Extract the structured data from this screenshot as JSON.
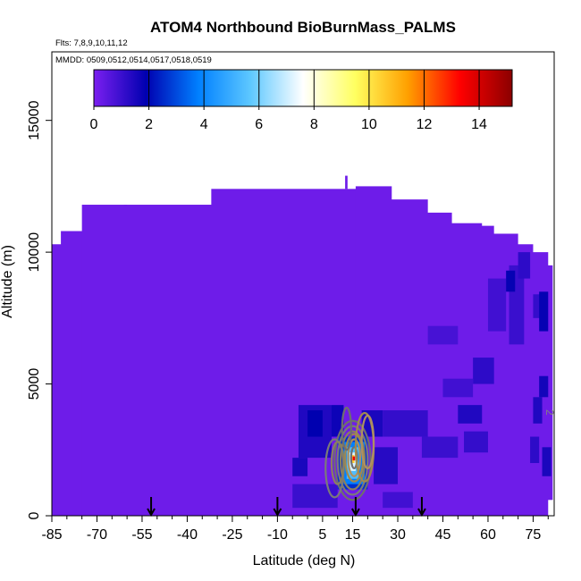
{
  "chart_data": {
    "type": "heatmap",
    "title": "ATOM4 Northbound BioBurnMass_PALMS",
    "subtitle_flights": "Flts: 7,8,9,10,11,12",
    "subtitle_dates": "MMDD: 0509,0512,0514,0517,0518,0519",
    "xlabel": "Latitude (deg N)",
    "ylabel": "Altitude (m)",
    "xlim": [
      -85,
      82
    ],
    "ylim": [
      0,
      17600
    ],
    "x_ticks": [
      -85,
      -70,
      -55,
      -40,
      -25,
      -10,
      5,
      15,
      30,
      45,
      60,
      75
    ],
    "y_ticks": [
      0,
      5000,
      10000,
      15000
    ],
    "y_tick_labels": [
      "0",
      "5000",
      "10000",
      "15000"
    ],
    "colorbar": {
      "min": 0,
      "max": 15.2,
      "ticks": [
        0,
        2,
        4,
        6,
        8,
        10,
        12,
        14
      ],
      "colors": [
        "#7b1ff0",
        "#0000b0",
        "#0080ff",
        "#5ec8ff",
        "#ffffff",
        "#ffff60",
        "#ffa000",
        "#ff0000",
        "#8b0000"
      ]
    },
    "background_value": 0.2,
    "coverage": [
      [
        -85,
        -80,
        0,
        10300
      ],
      [
        -82,
        -73,
        0,
        10800
      ],
      [
        -75,
        -60,
        0,
        11800
      ],
      [
        -61,
        -30,
        0,
        11800
      ],
      [
        -32,
        22,
        0,
        12400
      ],
      [
        16,
        28,
        0,
        12500
      ],
      [
        27,
        40,
        0,
        12000
      ],
      [
        38,
        48,
        0,
        11500
      ],
      [
        47,
        58,
        0,
        11100
      ],
      [
        57,
        62,
        0,
        11000
      ],
      [
        61,
        70,
        0,
        10700
      ],
      [
        68,
        75,
        0,
        10300
      ],
      [
        74,
        80,
        0,
        10000
      ],
      [
        79,
        81.5,
        600,
        9500
      ],
      [
        -62,
        -45,
        0,
        900
      ],
      [
        -45,
        -20,
        0,
        600
      ],
      [
        -20,
        0,
        0,
        1800
      ],
      [
        12.5,
        13.3,
        12400,
        12900
      ]
    ],
    "patches": [
      [
        -3,
        8,
        2200,
        4200,
        1.4
      ],
      [
        0,
        5,
        3000,
        4000,
        1.9
      ],
      [
        8,
        12,
        3000,
        4200,
        1.7
      ],
      [
        18,
        25,
        3000,
        4000,
        1.5
      ],
      [
        25,
        40,
        3000,
        4000,
        1.1
      ],
      [
        22,
        30,
        1200,
        2600,
        1.3
      ],
      [
        38,
        50,
        2200,
        3000,
        1.0
      ],
      [
        52,
        60,
        2400,
        3200,
        1.1
      ],
      [
        50,
        58,
        3500,
        4200,
        1.4
      ],
      [
        55,
        62,
        5000,
        6000,
        1.2
      ],
      [
        60,
        66,
        7000,
        9000,
        0.9
      ],
      [
        67,
        72,
        6500,
        9500,
        1.0
      ],
      [
        70,
        74,
        9000,
        10000,
        1.2
      ],
      [
        66,
        69,
        8500,
        9300,
        1.8
      ],
      [
        75,
        78,
        7500,
        8400,
        1.1
      ],
      [
        77,
        80,
        7000,
        8500,
        1.8
      ],
      [
        77,
        80,
        4500,
        5300,
        1.6
      ],
      [
        75,
        78,
        3500,
        4500,
        1.4
      ],
      [
        74,
        77,
        2000,
        3000,
        1.2
      ],
      [
        78,
        81,
        1500,
        2600,
        1.5
      ],
      [
        40,
        50,
        6500,
        7200,
        0.8
      ],
      [
        45,
        55,
        4500,
        5200,
        0.9
      ],
      [
        -5,
        0,
        1500,
        2200,
        1.5
      ],
      [
        -5,
        10,
        300,
        1200,
        1.0
      ],
      [
        25,
        35,
        300,
        900,
        0.9
      ],
      [
        10,
        20,
        1000,
        3000,
        2.6
      ],
      [
        12,
        19,
        1200,
        2800,
        3.8
      ],
      [
        13,
        17,
        1400,
        2600,
        5.4
      ],
      [
        14,
        16,
        1700,
        2400,
        7.2
      ],
      [
        14.6,
        15.6,
        2000,
        2300,
        10.5
      ],
      [
        15,
        15.8,
        2100,
        2250,
        13.5
      ]
    ],
    "contours": [
      [
        15,
        2100,
        6,
        1500
      ],
      [
        15,
        2100,
        5,
        1300
      ],
      [
        15,
        2100,
        4,
        1100
      ],
      [
        15.5,
        2200,
        3,
        900
      ],
      [
        15.5,
        2200,
        2,
        700
      ],
      [
        15.5,
        2200,
        1,
        400
      ],
      [
        9,
        1800,
        3,
        1100
      ],
      [
        10,
        2000,
        2,
        800
      ],
      [
        19,
        2600,
        3,
        1300
      ],
      [
        20,
        2800,
        2,
        1000
      ],
      [
        13,
        3300,
        1.5,
        800
      ]
    ],
    "arrows_x": [
      -52,
      -10,
      16,
      38
    ],
    "edge_label": "2"
  }
}
